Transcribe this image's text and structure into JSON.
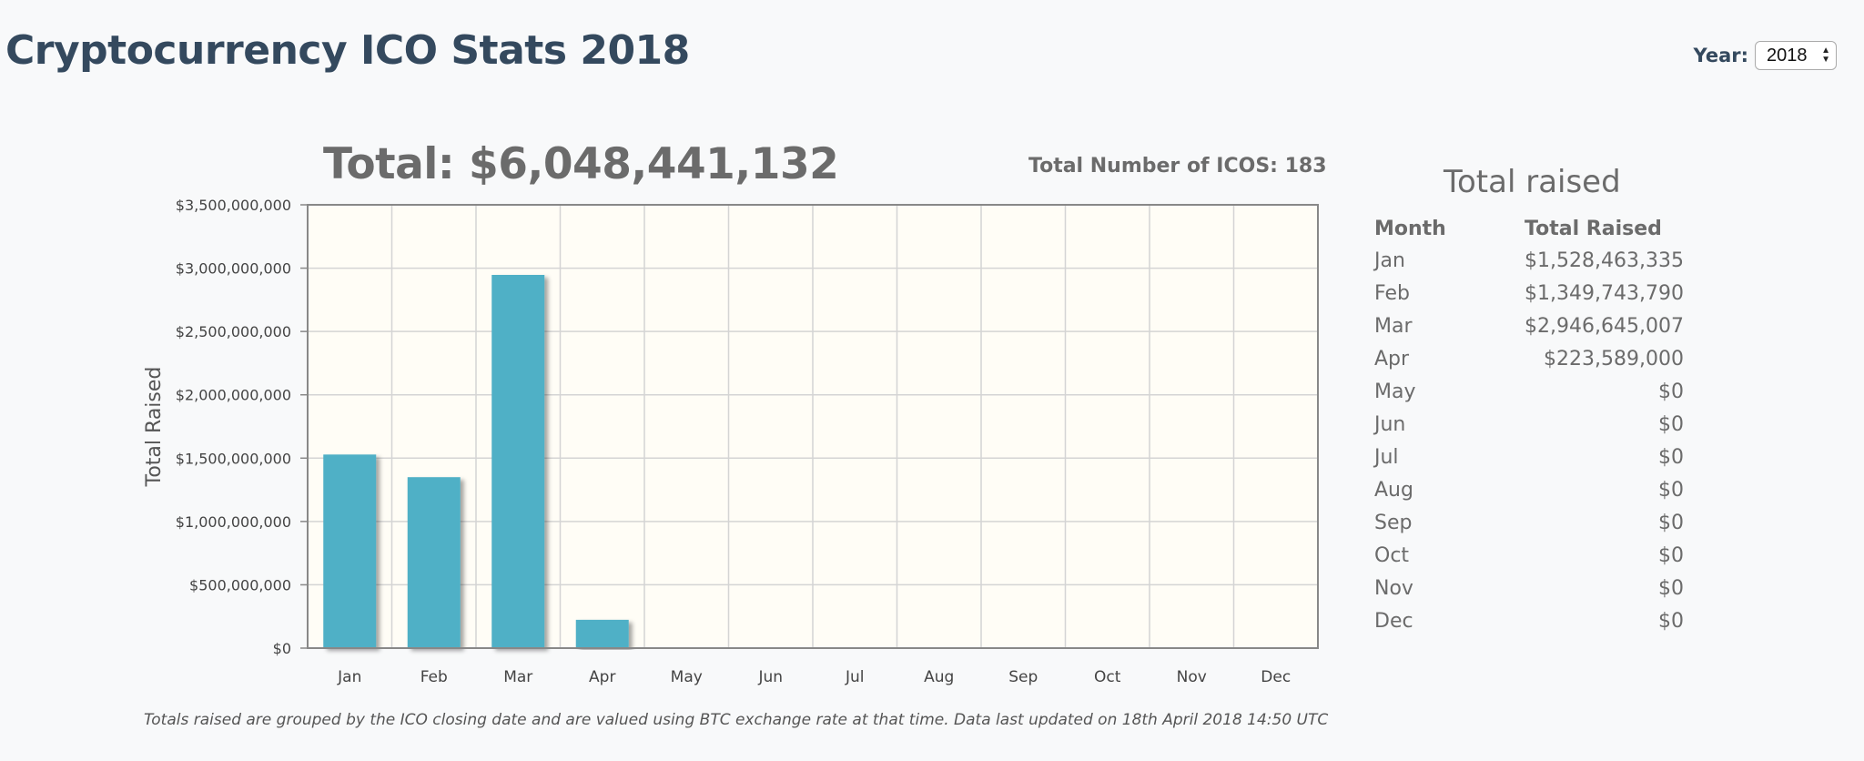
{
  "header": {
    "title": "Cryptocurrency ICO Stats 2018",
    "year_label": "Year:",
    "year_value": "2018"
  },
  "chart_summary": {
    "total": "Total: $6,048,441,132",
    "ico_count": "Total Number of ICOS: 183"
  },
  "footnote": "Totals raised are grouped by the ICO closing date and are valued using BTC exchange rate at that time. Data last updated on 18th April 2018 14:50 UTC",
  "table": {
    "title": "Total raised",
    "columns": [
      "Month",
      "Total Raised"
    ],
    "rows": [
      [
        "Jan",
        "$1,528,463,335"
      ],
      [
        "Feb",
        "$1,349,743,790"
      ],
      [
        "Mar",
        "$2,946,645,007"
      ],
      [
        "Apr",
        "$223,589,000"
      ],
      [
        "May",
        "$0"
      ],
      [
        "Jun",
        "$0"
      ],
      [
        "Jul",
        "$0"
      ],
      [
        "Aug",
        "$0"
      ],
      [
        "Sep",
        "$0"
      ],
      [
        "Oct",
        "$0"
      ],
      [
        "Nov",
        "$0"
      ],
      [
        "Dec",
        "$0"
      ]
    ]
  },
  "colors": {
    "bar": "#4fb0c6",
    "plot_bg": "#fffdf6",
    "title": "#34495e"
  },
  "chart_data": {
    "type": "bar",
    "categories": [
      "Jan",
      "Feb",
      "Mar",
      "Apr",
      "May",
      "Jun",
      "Jul",
      "Aug",
      "Sep",
      "Oct",
      "Nov",
      "Dec"
    ],
    "values": [
      1528463335,
      1349743790,
      2946645007,
      223589000,
      0,
      0,
      0,
      0,
      0,
      0,
      0,
      0
    ],
    "ylabel": "Total Raised",
    "xlabel": "",
    "ylim": [
      0,
      3500000000
    ],
    "yticks": [
      0,
      500000000,
      1000000000,
      1500000000,
      2000000000,
      2500000000,
      3000000000,
      3500000000
    ],
    "ytick_labels": [
      "$0",
      "$500,000,000",
      "$1,000,000,000",
      "$1,500,000,000",
      "$2,000,000,000",
      "$2,500,000,000",
      "$3,000,000,000",
      "$3,500,000,000"
    ],
    "grid": true
  }
}
